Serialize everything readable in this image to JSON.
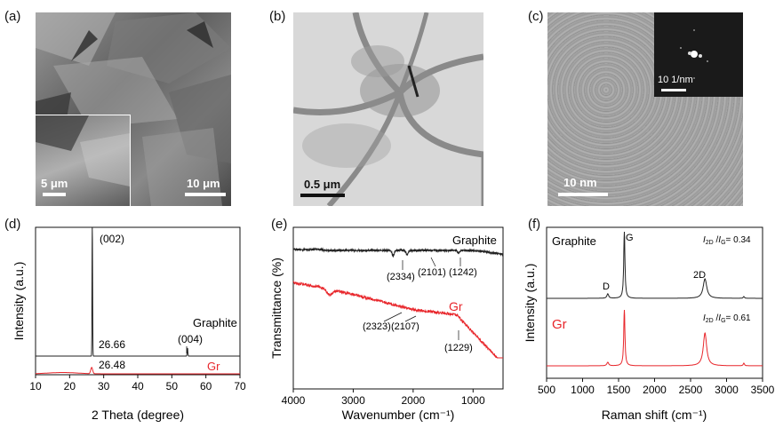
{
  "panels": {
    "a": {
      "label": "(a)",
      "scale_main": "10 μm",
      "scale_inset": "5 μm"
    },
    "b": {
      "label": "(b)",
      "scale": "0.5 μm"
    },
    "c": {
      "label": "(c)",
      "scale": "10 nm",
      "inset_scale": "10 1/nm"
    },
    "d": {
      "label": "(d)"
    },
    "e": {
      "label": "(e)"
    },
    "f": {
      "label": "(f)"
    }
  },
  "colors": {
    "graphite": "#222222",
    "gr": "#e8262b"
  },
  "chart_data": [
    {
      "type": "line",
      "xlabel": "2 Theta (degree)",
      "ylabel": "Intensity (a.u.)",
      "xlim": [
        10,
        70
      ],
      "xticks": [
        10,
        20,
        30,
        40,
        50,
        60,
        70
      ],
      "series": [
        {
          "name": "Graphite",
          "peaks": [
            26.66,
            54.6
          ]
        },
        {
          "name": "Gr",
          "peaks": [
            26.48
          ]
        }
      ],
      "annotations": [
        "(002)",
        "(004)",
        "26.66",
        "26.48"
      ]
    },
    {
      "type": "line",
      "xlabel": "Wavenumber (cm⁻¹)",
      "ylabel": "Transmittance (%)",
      "xlim": [
        4000,
        500
      ],
      "xticks": [
        4000,
        3000,
        2000,
        1000
      ],
      "series": [
        {
          "name": "Graphite",
          "dips": [
            2334,
            2101,
            1242
          ]
        },
        {
          "name": "Gr",
          "dips": [
            2323,
            2107,
            1229
          ]
        }
      ],
      "annotations": [
        "(2334)",
        "(2101)",
        "(1242)",
        "(2323)",
        "(2107)",
        "(1229)"
      ]
    },
    {
      "type": "line",
      "xlabel": "Raman shift (cm⁻¹)",
      "ylabel": "Intensity (a.u.)",
      "xlim": [
        500,
        3500
      ],
      "xticks": [
        500,
        1000,
        1500,
        2000,
        2500,
        3000,
        3500
      ],
      "series": [
        {
          "name": "Graphite",
          "peaks": [
            1350,
            1580,
            2700
          ],
          "ratio_label": "I2D/IG = 0.34"
        },
        {
          "name": "Gr",
          "peaks": [
            1350,
            1580,
            2700
          ],
          "ratio_label": "I2D/IG = 0.61"
        }
      ],
      "annotations": [
        "D",
        "G",
        "2D"
      ]
    }
  ],
  "text": {
    "d_peak002": "(002)",
    "d_peak004": "(004)",
    "d_val_graphite": "26.66",
    "d_val_gr": "26.48",
    "d_name_graphite": "Graphite",
    "d_name_gr": "Gr",
    "e_name_graphite": "Graphite",
    "e_name_gr": "Gr",
    "e_2334": "(2334)",
    "e_2101": "(2101)",
    "e_1242": "(1242)",
    "e_2323": "(2323)",
    "e_2107": "(2107)",
    "e_1229": "(1229)",
    "f_name_graphite": "Graphite",
    "f_name_gr": "Gr",
    "f_D": "D",
    "f_G": "G",
    "f_2D": "2D",
    "f_ratio_graphite_val": "= 0.34",
    "f_ratio_gr_val": "= 0.61"
  }
}
